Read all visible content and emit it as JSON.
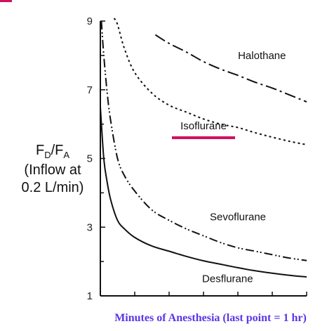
{
  "colors": {
    "axis": "#111111",
    "series": "#111111",
    "xlabel": "#5b36e6",
    "highlight_underline": "#d01060",
    "top_left_mark": "#d01060"
  },
  "chart_data": {
    "type": "line",
    "title": "",
    "xlabel": "Minutes of Anesthesia (last point = 1 hr)",
    "ylabel_lines": [
      "F",
      "D",
      "/F",
      "A",
      "(Inflow at",
      "0.2 L/min)"
    ],
    "ylim": [
      1,
      9
    ],
    "xlim": [
      0,
      60
    ],
    "y_ticks": [
      1,
      3,
      5,
      7,
      9
    ],
    "y_minor_ticks": [
      2,
      4,
      6,
      8
    ],
    "x_ticks": [
      0,
      10,
      20,
      30,
      40,
      50,
      60
    ],
    "grid": false,
    "series": [
      {
        "name": "Halothane",
        "line_style": "dash-dot",
        "highlighted": false,
        "x": [
          16,
          20,
          25,
          30,
          35,
          40,
          45,
          50,
          55,
          60
        ],
        "y": [
          8.6,
          8.35,
          8.1,
          7.82,
          7.6,
          7.42,
          7.22,
          7.05,
          6.85,
          6.65
        ]
      },
      {
        "name": "Isoflurane",
        "line_style": "dotted",
        "highlighted": true,
        "x": [
          4,
          5,
          7,
          10,
          15,
          20,
          25,
          30,
          35,
          40,
          45,
          50,
          55,
          60
        ],
        "y": [
          9.3,
          8.9,
          8.2,
          7.5,
          6.9,
          6.55,
          6.35,
          6.15,
          6.0,
          5.9,
          5.75,
          5.62,
          5.5,
          5.4
        ]
      },
      {
        "name": "Sevoflurane",
        "line_style": "dash-dot-dot",
        "highlighted": false,
        "x": [
          0.3,
          1,
          2,
          3,
          5,
          7,
          10,
          15,
          20,
          25,
          30,
          35,
          40,
          45,
          50,
          55,
          60
        ],
        "y": [
          9.0,
          8.0,
          6.9,
          6.1,
          5.0,
          4.5,
          4.05,
          3.5,
          3.2,
          2.95,
          2.75,
          2.55,
          2.4,
          2.3,
          2.2,
          2.1,
          2.03
        ]
      },
      {
        "name": "Desflurane",
        "line_style": "solid",
        "highlighted": false,
        "x": [
          0,
          1,
          2,
          3,
          5,
          7,
          10,
          15,
          20,
          25,
          30,
          35,
          40,
          45,
          50,
          55,
          60
        ],
        "y": [
          6.5,
          5.0,
          4.3,
          3.8,
          3.2,
          2.95,
          2.7,
          2.45,
          2.3,
          2.15,
          2.02,
          1.92,
          1.82,
          1.73,
          1.66,
          1.6,
          1.55
        ]
      }
    ],
    "label_positions": [
      {
        "series": 0,
        "x": 47,
        "y": 7.9
      },
      {
        "series": 1,
        "x": 30,
        "y": 5.85
      },
      {
        "series": 2,
        "x": 40,
        "y": 3.2
      },
      {
        "series": 3,
        "x": 37,
        "y": 1.4
      }
    ]
  }
}
